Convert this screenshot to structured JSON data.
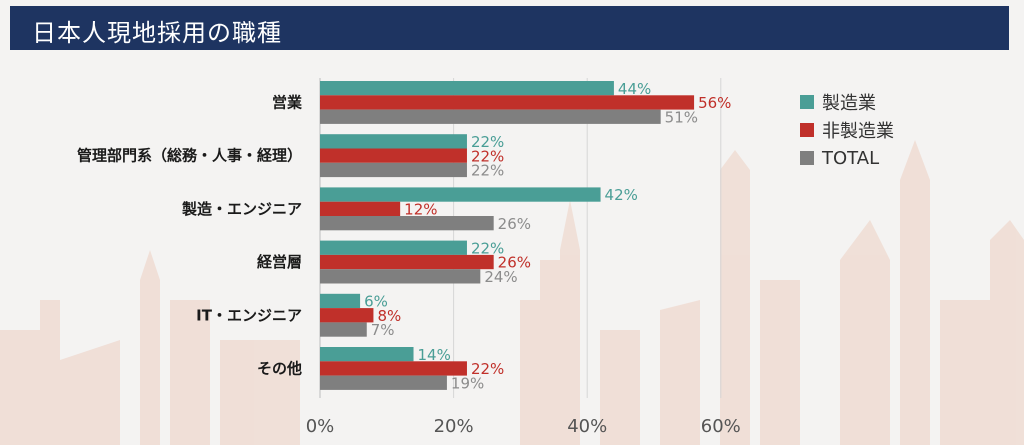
{
  "header": {
    "title": "日本人現地採用の職種"
  },
  "colors": {
    "header_bg": "#1e3461",
    "manufacturing": "#4a9e96",
    "non_manufacturing": "#c0302a",
    "total": "#7f7f7f"
  },
  "chart_data": {
    "type": "bar",
    "orientation": "horizontal",
    "title": "",
    "xlabel": "",
    "ylabel": "",
    "xlim": [
      0,
      60
    ],
    "x_ticks": [
      "0%",
      "20%",
      "40%",
      "60%"
    ],
    "grid": true,
    "legend_position": "top-right",
    "categories": [
      "営業",
      "管理部門系（総務・人事・経理）",
      "製造・エンジニア",
      "経営層",
      "IT・エンジニア",
      "その他"
    ],
    "series": [
      {
        "name": "製造業",
        "color": "#4a9e96",
        "values": [
          44,
          22,
          42,
          22,
          6,
          14
        ],
        "labels": [
          "44%",
          "22%",
          "42%",
          "22%",
          "6%",
          "14%"
        ]
      },
      {
        "name": "非製造業",
        "color": "#c0302a",
        "values": [
          56,
          22,
          12,
          26,
          8,
          22
        ],
        "labels": [
          "56%",
          "22%",
          "12%",
          "26%",
          "8%",
          "22%"
        ]
      },
      {
        "name": "TOTAL",
        "color": "#7f7f7f",
        "values": [
          51,
          22,
          26,
          24,
          7,
          19
        ],
        "labels": [
          "51%",
          "22%",
          "26%",
          "24%",
          "7%",
          "19%"
        ]
      }
    ]
  }
}
